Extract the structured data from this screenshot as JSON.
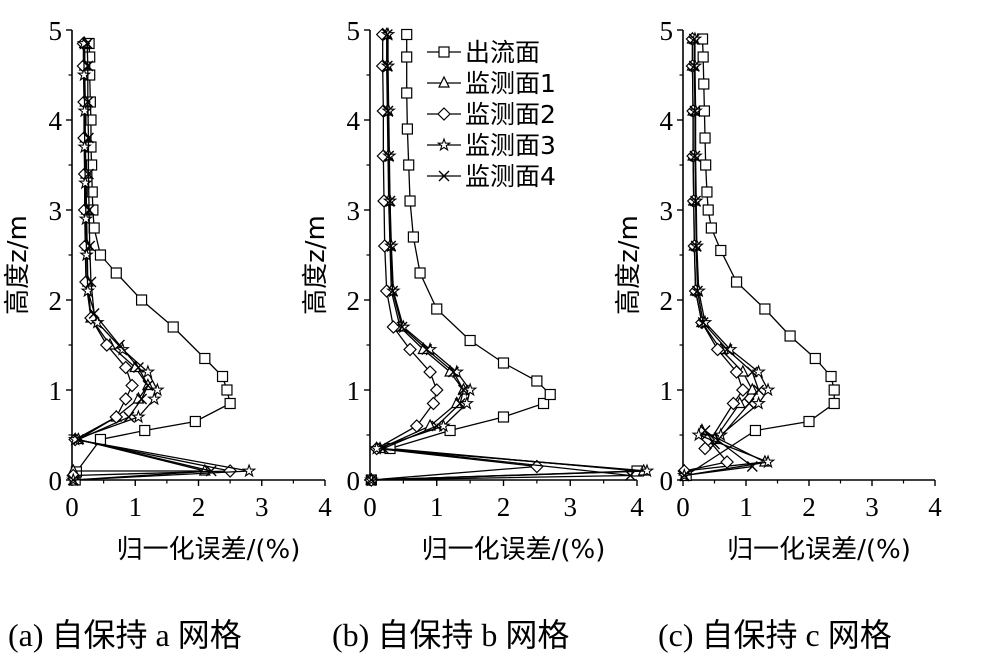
{
  "chart_data": [
    {
      "id": "a",
      "type": "line",
      "caption": "(a)  自保持 a 网格",
      "xlabel": "归一化误差/(%)",
      "ylabel": "高度z/m",
      "xlim": [
        0,
        4
      ],
      "ylim": [
        0,
        5
      ],
      "xticks": [
        "0",
        "1",
        "2",
        "3",
        "4"
      ],
      "yticks": [
        "0",
        "1",
        "2",
        "3",
        "4",
        "5"
      ],
      "legend": null,
      "series": [
        {
          "name": "出流面",
          "marker": "square",
          "x": [
            0.05,
            0.07,
            0.45,
            1.15,
            1.95,
            2.5,
            2.45,
            2.38,
            2.1,
            1.6,
            1.1,
            0.7,
            0.45,
            0.35,
            0.33,
            0.32,
            0.31,
            0.3,
            0.3,
            0.29,
            0.28,
            0.28,
            0.27
          ],
          "y": [
            0,
            0.09,
            0.45,
            0.55,
            0.65,
            0.85,
            1,
            1.15,
            1.35,
            1.7,
            2.0,
            2.3,
            2.5,
            2.8,
            3.0,
            3.2,
            3.5,
            3.7,
            4.0,
            4.2,
            4.5,
            4.7,
            4.85
          ]
        },
        {
          "name": "监测面1",
          "marker": "triangle",
          "x": [
            0.02,
            2.1,
            0.1,
            0.7,
            1.05,
            1.2,
            1.0,
            0.6,
            0.3,
            0.25,
            0.24,
            0.23,
            0.22,
            0.21,
            0.21,
            0.2,
            0.2
          ],
          "y": [
            0.1,
            0.1,
            0.45,
            0.7,
            0.9,
            1.05,
            1.25,
            1.5,
            1.8,
            2.2,
            2.6,
            3.0,
            3.4,
            3.8,
            4.2,
            4.6,
            4.85
          ]
        },
        {
          "name": "监测面2",
          "marker": "diamond",
          "x": [
            0.02,
            2.5,
            0.05,
            0.7,
            0.85,
            0.95,
            0.85,
            0.55,
            0.3,
            0.22,
            0.21,
            0.2,
            0.2,
            0.19,
            0.19,
            0.18,
            0.18
          ],
          "y": [
            0.05,
            0.1,
            0.45,
            0.7,
            0.9,
            1.05,
            1.25,
            1.5,
            1.8,
            2.2,
            2.6,
            3.0,
            3.4,
            3.8,
            4.2,
            4.6,
            4.85
          ]
        },
        {
          "name": "监测面3",
          "marker": "star",
          "x": [
            0.02,
            2.8,
            0.05,
            1.05,
            1.3,
            1.35,
            1.2,
            0.8,
            0.4,
            0.25,
            0.23,
            0.22,
            0.21,
            0.2,
            0.2,
            0.19,
            0.19
          ],
          "y": [
            0,
            0.1,
            0.45,
            0.7,
            0.9,
            1.0,
            1.2,
            1.45,
            1.75,
            2.1,
            2.5,
            2.9,
            3.3,
            3.7,
            4.1,
            4.5,
            4.85
          ]
        },
        {
          "name": "监测面4",
          "marker": "x",
          "x": [
            0.02,
            2.2,
            0.1,
            0.9,
            1.1,
            1.2,
            1.05,
            0.75,
            0.35,
            0.3,
            0.28,
            0.27,
            0.26,
            0.26,
            0.25,
            0.25,
            0.24
          ],
          "y": [
            0,
            0.1,
            0.45,
            0.7,
            0.9,
            1.05,
            1.25,
            1.5,
            1.85,
            2.2,
            2.6,
            3.0,
            3.4,
            3.8,
            4.2,
            4.6,
            4.85
          ]
        }
      ]
    },
    {
      "id": "b",
      "type": "line",
      "caption": "(b)  自保持 b 网格",
      "xlabel": "归一化误差/(%)",
      "ylabel": "高度z/m",
      "xlim": [
        0,
        4
      ],
      "ylim": [
        0,
        5
      ],
      "xticks": [
        "0",
        "1",
        "2",
        "3",
        "4"
      ],
      "yticks": [
        "0",
        "1",
        "2",
        "3",
        "4",
        "5"
      ],
      "legend": {
        "position": "top-right"
      },
      "series": [
        {
          "name": "出流面",
          "marker": "square",
          "x": [
            0.02,
            4.0,
            0.3,
            1.2,
            2.0,
            2.6,
            2.7,
            2.5,
            2.0,
            1.5,
            1.0,
            0.75,
            0.65,
            0.6,
            0.58,
            0.56,
            0.55,
            0.55,
            0.55
          ],
          "y": [
            0,
            0.1,
            0.35,
            0.55,
            0.7,
            0.85,
            0.95,
            1.1,
            1.3,
            1.55,
            1.9,
            2.3,
            2.7,
            3.1,
            3.5,
            3.9,
            4.3,
            4.7,
            4.95
          ]
        },
        {
          "name": "监测面1",
          "marker": "triangle",
          "x": [
            0.02,
            4.1,
            0.15,
            0.9,
            1.3,
            1.4,
            1.2,
            0.8,
            0.45,
            0.32,
            0.3,
            0.28,
            0.27,
            0.26,
            0.25,
            0.25
          ],
          "y": [
            0,
            0.1,
            0.35,
            0.6,
            0.85,
            1.0,
            1.2,
            1.45,
            1.7,
            2.1,
            2.6,
            3.1,
            3.6,
            4.1,
            4.6,
            4.95
          ]
        },
        {
          "name": "监测面2",
          "marker": "diamond",
          "x": [
            0.02,
            2.5,
            0.1,
            0.7,
            0.95,
            1.0,
            0.9,
            0.6,
            0.35,
            0.25,
            0.22,
            0.21,
            0.2,
            0.2,
            0.19,
            0.19
          ],
          "y": [
            0,
            0.15,
            0.35,
            0.6,
            0.85,
            1.0,
            1.2,
            1.45,
            1.7,
            2.1,
            2.6,
            3.1,
            3.6,
            4.1,
            4.6,
            4.95
          ]
        },
        {
          "name": "监测面3",
          "marker": "star",
          "x": [
            0.02,
            4.15,
            0.1,
            1.1,
            1.45,
            1.5,
            1.3,
            0.9,
            0.5,
            0.35,
            0.32,
            0.3,
            0.29,
            0.28,
            0.27,
            0.27
          ],
          "y": [
            0,
            0.1,
            0.35,
            0.6,
            0.85,
            1.0,
            1.2,
            1.45,
            1.7,
            2.1,
            2.6,
            3.1,
            3.6,
            4.1,
            4.6,
            4.95
          ]
        },
        {
          "name": "监测面4",
          "marker": "x",
          "x": [
            0.02,
            3.9,
            0.2,
            1.0,
            1.35,
            1.4,
            1.25,
            0.85,
            0.48,
            0.34,
            0.31,
            0.3,
            0.28,
            0.27,
            0.26,
            0.26
          ],
          "y": [
            0,
            0.05,
            0.35,
            0.6,
            0.85,
            1.0,
            1.2,
            1.45,
            1.7,
            2.1,
            2.6,
            3.1,
            3.6,
            4.1,
            4.6,
            4.95
          ]
        }
      ]
    },
    {
      "id": "c",
      "type": "line",
      "caption": "(c)  自保持 c 网格",
      "xlabel": "归一化误差/(%)",
      "ylabel": "高度z/m",
      "xlim": [
        0,
        4
      ],
      "ylim": [
        0,
        5
      ],
      "xticks": [
        "0",
        "1",
        "2",
        "3",
        "4"
      ],
      "yticks": [
        "0",
        "1",
        "2",
        "3",
        "4",
        "5"
      ],
      "legend": null,
      "series": [
        {
          "name": "出流面",
          "marker": "square",
          "x": [
            0.05,
            1.15,
            2.0,
            2.4,
            2.4,
            2.35,
            2.1,
            1.7,
            1.3,
            0.85,
            0.6,
            0.45,
            0.4,
            0.38,
            0.36,
            0.35,
            0.34,
            0.33,
            0.32,
            0.31
          ],
          "y": [
            0.05,
            0.55,
            0.65,
            0.85,
            1.0,
            1.15,
            1.35,
            1.6,
            1.9,
            2.2,
            2.55,
            2.8,
            3.0,
            3.2,
            3.5,
            3.8,
            4.1,
            4.4,
            4.7,
            4.9
          ]
        },
        {
          "name": "监测面1",
          "marker": "triangle",
          "x": [
            0.02,
            1.3,
            0.3,
            0.5,
            0.9,
            1.1,
            0.95,
            0.6,
            0.3,
            0.2,
            0.18,
            0.17,
            0.16,
            0.16,
            0.15,
            0.15
          ],
          "y": [
            0.1,
            0.2,
            0.55,
            0.45,
            0.85,
            1.0,
            1.2,
            1.45,
            1.75,
            2.1,
            2.6,
            3.1,
            3.6,
            4.1,
            4.6,
            4.9
          ]
        },
        {
          "name": "监测面2",
          "marker": "diamond",
          "x": [
            0.02,
            0.7,
            0.4,
            0.35,
            0.8,
            0.95,
            0.85,
            0.55,
            0.3,
            0.2,
            0.18,
            0.17,
            0.16,
            0.16,
            0.15,
            0.15
          ],
          "y": [
            0.1,
            0.2,
            0.45,
            0.35,
            0.85,
            1.0,
            1.2,
            1.45,
            1.75,
            2.1,
            2.6,
            3.1,
            3.6,
            4.1,
            4.6,
            4.9
          ]
        },
        {
          "name": "监测面3",
          "marker": "star",
          "x": [
            0.02,
            1.35,
            0.25,
            0.6,
            1.2,
            1.35,
            1.2,
            0.75,
            0.35,
            0.25,
            0.22,
            0.21,
            0.2,
            0.2,
            0.19,
            0.19
          ],
          "y": [
            0.05,
            0.2,
            0.5,
            0.5,
            0.85,
            1.0,
            1.2,
            1.45,
            1.75,
            2.1,
            2.6,
            3.1,
            3.6,
            4.1,
            4.6,
            4.9
          ]
        },
        {
          "name": "监测面4",
          "marker": "x",
          "x": [
            0.02,
            1.1,
            0.35,
            0.5,
            1.05,
            1.2,
            1.1,
            0.7,
            0.32,
            0.23,
            0.21,
            0.2,
            0.19,
            0.19,
            0.18,
            0.18
          ],
          "y": [
            0.05,
            0.15,
            0.55,
            0.4,
            0.85,
            1.0,
            1.2,
            1.45,
            1.75,
            2.1,
            2.6,
            3.1,
            3.6,
            4.1,
            4.6,
            4.9
          ]
        }
      ]
    }
  ]
}
